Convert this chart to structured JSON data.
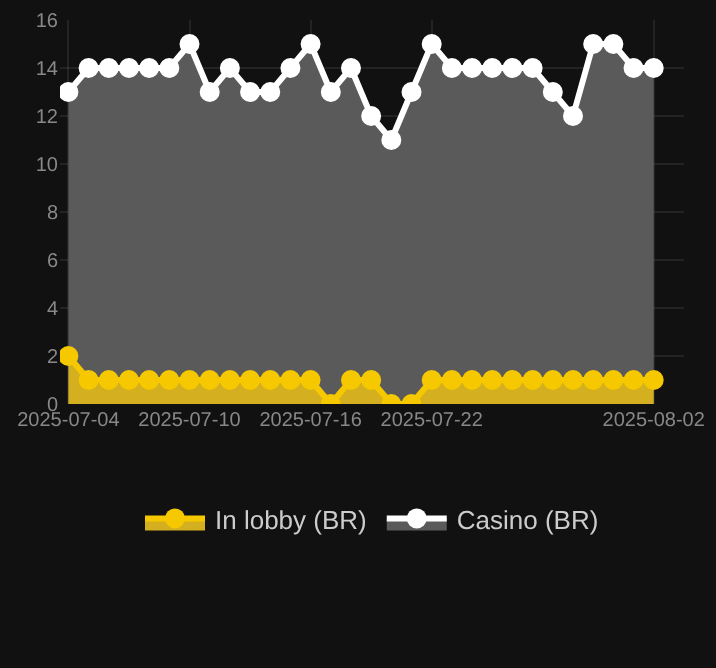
{
  "chart_data": {
    "type": "area",
    "x": [
      "2025-07-04",
      "2025-07-05",
      "2025-07-06",
      "2025-07-07",
      "2025-07-08",
      "2025-07-09",
      "2025-07-10",
      "2025-07-11",
      "2025-07-12",
      "2025-07-13",
      "2025-07-14",
      "2025-07-15",
      "2025-07-16",
      "2025-07-17",
      "2025-07-18",
      "2025-07-19",
      "2025-07-20",
      "2025-07-21",
      "2025-07-22",
      "2025-07-23",
      "2025-07-24",
      "2025-07-25",
      "2025-07-26",
      "2025-07-27",
      "2025-07-28",
      "2025-07-29",
      "2025-07-30",
      "2025-07-31",
      "2025-08-01",
      "2025-08-02"
    ],
    "series": [
      {
        "name": "In lobby (BR)",
        "color": "#f5c800",
        "values": [
          2,
          1,
          1,
          1,
          1,
          1,
          1,
          1,
          1,
          1,
          1,
          1,
          1,
          0,
          1,
          1,
          0,
          0,
          1,
          1,
          1,
          1,
          1,
          1,
          1,
          1,
          1,
          1,
          1,
          1
        ]
      },
      {
        "name": "Casino (BR)",
        "color": "#ffffff",
        "values": [
          13,
          14,
          14,
          14,
          14,
          14,
          15,
          13,
          14,
          13,
          13,
          14,
          15,
          13,
          14,
          12,
          11,
          13,
          15,
          14,
          14,
          14,
          14,
          14,
          13,
          12,
          15,
          15,
          14,
          14
        ]
      }
    ],
    "xlim": [
      "2025-07-03T14:00",
      "2025-08-03T12:00"
    ],
    "xticks": [
      "2025-07-04",
      "2025-07-10",
      "2025-07-16",
      "2025-07-22",
      "2025-08-02"
    ],
    "ylim": [
      0,
      16
    ],
    "yticks": [
      0,
      2,
      4,
      6,
      8,
      10,
      12,
      14,
      16
    ],
    "grid": true,
    "legend": "bottom",
    "marker": "circle"
  }
}
